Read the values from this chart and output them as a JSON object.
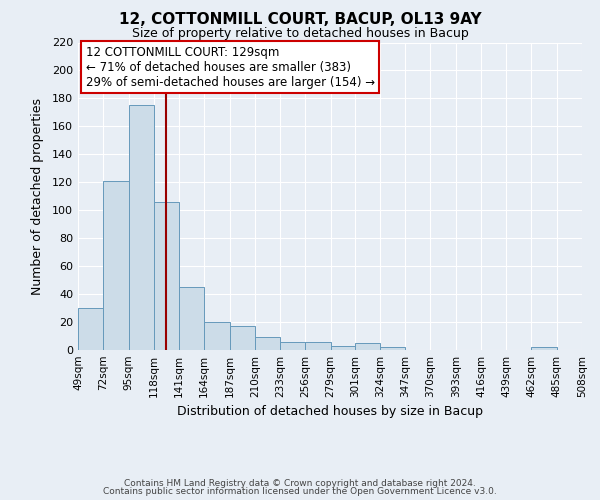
{
  "title": "12, COTTONMILL COURT, BACUP, OL13 9AY",
  "subtitle": "Size of property relative to detached houses in Bacup",
  "xlabel": "Distribution of detached houses by size in Bacup",
  "ylabel": "Number of detached properties",
  "bar_color": "#ccdce8",
  "bar_edge_color": "#6699bb",
  "background_color": "#e8eef5",
  "grid_color": "#ffffff",
  "vline_x": 129,
  "vline_color": "#990000",
  "bin_edges": [
    49,
    72,
    95,
    118,
    141,
    164,
    187,
    210,
    233,
    256,
    279,
    301,
    324,
    347,
    370,
    393,
    416,
    439,
    462,
    485,
    508
  ],
  "bin_labels": [
    "49sqm",
    "72sqm",
    "95sqm",
    "118sqm",
    "141sqm",
    "164sqm",
    "187sqm",
    "210sqm",
    "233sqm",
    "256sqm",
    "279sqm",
    "301sqm",
    "324sqm",
    "347sqm",
    "370sqm",
    "393sqm",
    "416sqm",
    "439sqm",
    "462sqm",
    "485sqm",
    "508sqm"
  ],
  "counts": [
    30,
    121,
    175,
    106,
    45,
    20,
    17,
    9,
    6,
    6,
    3,
    5,
    2,
    0,
    0,
    0,
    0,
    0,
    2,
    0
  ],
  "annotation_title": "12 COTTONMILL COURT: 129sqm",
  "annotation_line1": "← 71% of detached houses are smaller (383)",
  "annotation_line2": "29% of semi-detached houses are larger (154) →",
  "annotation_box_color": "#ffffff",
  "annotation_border_color": "#cc0000",
  "footer1": "Contains HM Land Registry data © Crown copyright and database right 2024.",
  "footer2": "Contains public sector information licensed under the Open Government Licence v3.0.",
  "ylim": [
    0,
    220
  ],
  "yticks": [
    0,
    20,
    40,
    60,
    80,
    100,
    120,
    140,
    160,
    180,
    200,
    220
  ]
}
